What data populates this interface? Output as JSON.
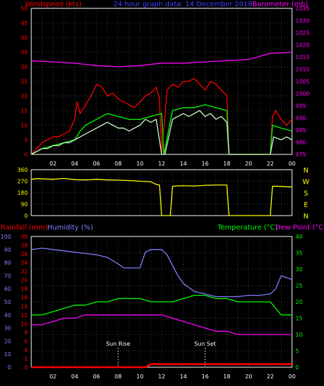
{
  "header": {
    "left_label": "Windspeed (kts)",
    "center_label": "24 hour graph data: 14 December 2018",
    "right_label": "Barometer (mb)"
  },
  "colors": {
    "background": "#000000",
    "axis": "#ffffff",
    "grid": "#808080",
    "red": "#ff0000",
    "blue": "#4040ff",
    "magenta": "#ff00ff",
    "green": "#00ff00",
    "yellow": "#ffff00",
    "wind_lull": "#ccffcc",
    "humidity": "#8080ff"
  },
  "direction_labels": [
    "N",
    "W",
    "S",
    "E",
    "N"
  ],
  "sun": {
    "rise_label": "Sun Rise",
    "set_label": "Sun Set",
    "rise_hour": 8.0,
    "set_hour": 16.0
  },
  "panel3": {
    "rain_label": "Rainfall (mm)",
    "humidity_label": "Humidity (%)",
    "temp_label": "Temperature (°C)",
    "dew_label": "Dew Point (°C)"
  },
  "chart_data": [
    {
      "type": "line",
      "x_range": [
        0,
        24
      ],
      "x_tick_labels": [
        "02",
        "04",
        "06",
        "08",
        "10",
        "12",
        "14",
        "16",
        "18",
        "20",
        "22",
        "00"
      ],
      "ylim_left": [
        0,
        50
      ],
      "ylim_right": [
        975,
        1035
      ],
      "y_left_ticks": [
        "0",
        "5",
        "10",
        "15",
        "20",
        "25",
        "30",
        "35",
        "40",
        "45",
        "50"
      ],
      "y_right_ticks": [
        "975",
        "980",
        "985",
        "990",
        "995",
        "1000",
        "1005",
        "1010",
        "1015",
        "1020",
        "1025",
        "1030",
        "1035"
      ],
      "series": [
        {
          "name": "gust",
          "color": "#ff0000",
          "axis": "left",
          "x": [
            0,
            0.5,
            1,
            1.5,
            2,
            2.5,
            3,
            3.5,
            4,
            4.2,
            4.5,
            5,
            5.5,
            6,
            6.5,
            7,
            7.5,
            8,
            8.5,
            9,
            9.5,
            10,
            10.5,
            11,
            11.5,
            11.8,
            12,
            12.5,
            13,
            13.5,
            14,
            14.5,
            15,
            15.5,
            16,
            16.5,
            17,
            17.5,
            18,
            18.2,
            18.5,
            20,
            22,
            22.2,
            22.5,
            23,
            23.5,
            24
          ],
          "y": [
            0,
            2,
            4,
            5,
            6,
            6,
            7,
            8,
            12,
            18,
            14,
            17,
            20,
            24,
            23,
            20,
            21,
            19,
            18,
            17,
            16,
            18,
            20,
            21,
            23,
            19,
            0,
            22,
            24,
            23,
            25,
            25,
            26,
            24,
            22,
            25,
            24,
            22,
            20,
            0,
            0,
            0,
            0,
            13,
            15,
            12,
            10,
            12
          ]
        },
        {
          "name": "average",
          "color": "#00ff00",
          "axis": "left",
          "x": [
            0,
            1,
            2,
            3,
            4,
            4.5,
            5,
            6,
            7,
            8,
            9,
            10,
            11,
            12,
            12.2,
            13,
            14,
            15,
            16,
            17,
            18,
            18.2,
            22,
            22.2,
            23,
            24
          ],
          "y": [
            0,
            2,
            3,
            4,
            5,
            8,
            10,
            12,
            14,
            13,
            12,
            12,
            13,
            14,
            0,
            15,
            16,
            16,
            17,
            16,
            15,
            0,
            0,
            10,
            9,
            8
          ]
        },
        {
          "name": "lull",
          "color": "#ccffcc",
          "axis": "left",
          "x": [
            0,
            0.5,
            1,
            1.5,
            2,
            2.5,
            3,
            3.5,
            4,
            4.5,
            5,
            5.5,
            6,
            6.5,
            7,
            7.5,
            8,
            8.5,
            9,
            9.5,
            10,
            10.5,
            11,
            11.5,
            12,
            12.3,
            13,
            13.5,
            14,
            14.5,
            15,
            15.5,
            16,
            16.5,
            17,
            17.5,
            18,
            18.2,
            22,
            22.3,
            23,
            23.5,
            24
          ],
          "y": [
            0,
            1,
            2,
            2,
            3,
            3,
            4,
            4,
            5,
            6,
            7,
            8,
            9,
            10,
            11,
            10,
            9,
            9,
            8,
            9,
            10,
            12,
            11,
            12,
            0,
            0,
            12,
            13,
            14,
            13,
            14,
            15,
            13,
            14,
            12,
            13,
            11,
            0,
            0,
            6,
            5,
            6,
            5
          ]
        },
        {
          "name": "barometer",
          "color": "#ff00ff",
          "axis": "right",
          "x": [
            0,
            2,
            4,
            6,
            8,
            10,
            12,
            14,
            16,
            18,
            20,
            22,
            24
          ],
          "y": [
            1013.5,
            1013.0,
            1012.5,
            1011.5,
            1011.0,
            1011.5,
            1012.5,
            1012.5,
            1013.0,
            1013.5,
            1014.0,
            1016.5,
            1017.0
          ]
        }
      ]
    },
    {
      "type": "line",
      "x_range": [
        0,
        24
      ],
      "ylim": [
        0,
        360
      ],
      "y_ticks": [
        "0",
        "90",
        "180",
        "270",
        "360"
      ],
      "series": [
        {
          "name": "direction",
          "color": "#ffff00",
          "x": [
            0,
            0.5,
            1,
            2,
            3,
            4,
            5,
            6,
            7,
            8,
            9,
            10,
            11,
            11.5,
            11.8,
            12,
            12.2,
            12.8,
            13,
            14,
            15,
            16,
            17,
            18,
            18.2,
            22,
            22.2,
            23,
            24
          ],
          "y": [
            285,
            290,
            288,
            285,
            292,
            282,
            280,
            285,
            280,
            278,
            275,
            270,
            265,
            245,
            240,
            0,
            0,
            0,
            230,
            235,
            232,
            238,
            240,
            240,
            0,
            0,
            230,
            228,
            225
          ]
        }
      ]
    },
    {
      "type": "line",
      "x_range": [
        0,
        24
      ],
      "ylim_rain": [
        0,
        30
      ],
      "ylim_humidity": [
        0,
        100
      ],
      "ylim_temp": [
        0,
        40
      ],
      "y_rain_ticks": [
        "0",
        "2",
        "4",
        "6",
        "8",
        "10",
        "12",
        "14",
        "16",
        "18",
        "20",
        "22",
        "24",
        "26",
        "28",
        "30"
      ],
      "y_humidity_ticks": [
        "0",
        "10",
        "20",
        "30",
        "40",
        "50",
        "60",
        "70",
        "80",
        "90",
        "100"
      ],
      "y_temp_ticks": [
        "0",
        "5",
        "10",
        "15",
        "20",
        "25",
        "30",
        "35",
        "40"
      ],
      "series": [
        {
          "name": "rainfall",
          "color": "#ff0000",
          "axis": "rain",
          "x": [
            0,
            10.5,
            11,
            24
          ],
          "y": [
            0,
            0,
            0.7,
            0.7
          ]
        },
        {
          "name": "humidity",
          "color": "#8080ff",
          "axis": "humidity",
          "x": [
            0,
            1,
            2,
            3,
            4,
            5,
            6,
            7,
            8,
            8.5,
            9,
            10,
            10.5,
            11,
            12,
            12.5,
            13,
            13.5,
            14,
            15,
            16,
            17,
            18,
            19,
            20,
            21,
            22,
            22.5,
            23,
            24
          ],
          "y": [
            90,
            91,
            90,
            89,
            88,
            87,
            86,
            84,
            79,
            76,
            76,
            76,
            88,
            90,
            90,
            86,
            78,
            70,
            64,
            58,
            56,
            54,
            54,
            54,
            55,
            55,
            56,
            60,
            70,
            67
          ]
        },
        {
          "name": "temperature",
          "color": "#00ff00",
          "axis": "temp",
          "x": [
            0,
            1,
            2,
            3,
            4,
            5,
            6,
            7,
            8,
            9,
            10,
            11,
            12,
            13,
            14,
            15,
            16,
            17,
            18,
            19,
            20,
            21,
            22,
            22.5,
            23,
            24
          ],
          "y": [
            16,
            16,
            17,
            18,
            19,
            19,
            20,
            20,
            21,
            21,
            21,
            20,
            20,
            20,
            21,
            22,
            22,
            21,
            21,
            20,
            20,
            20,
            20,
            18,
            16,
            16
          ]
        },
        {
          "name": "dewpoint",
          "color": "#ff00ff",
          "axis": "temp",
          "x": [
            0,
            1,
            2,
            3,
            4,
            5,
            6,
            7,
            8,
            9,
            10,
            11,
            12,
            13,
            14,
            15,
            16,
            17,
            18,
            19,
            20,
            21,
            22,
            22.5,
            23,
            24
          ],
          "y": [
            13,
            13,
            14,
            15,
            15,
            16,
            16,
            16,
            16,
            16,
            16,
            16,
            16,
            15,
            14,
            13,
            12,
            11,
            11,
            10,
            10,
            10,
            10,
            10,
            10,
            10
          ]
        }
      ]
    }
  ]
}
